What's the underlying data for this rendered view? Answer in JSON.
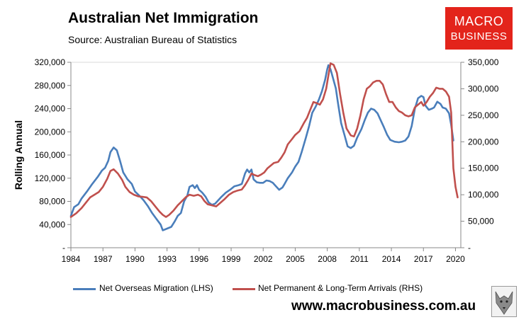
{
  "header": {
    "title": "Australian Net Immigration",
    "source": "Source: Australian Bureau of Statistics"
  },
  "logo": {
    "line1": "MACRO",
    "line2": "BUSINESS",
    "color": "#e3241b"
  },
  "footer": {
    "url": "www.macrobusiness.com.au"
  },
  "chart_data": {
    "type": "line",
    "ylabel": "Rolling Annual",
    "xlim": [
      1984,
      2020.5
    ],
    "ylim_left": [
      0,
      320000
    ],
    "ylim_right": [
      0,
      350000
    ],
    "x_ticks": [
      "1984",
      "1987",
      "1990",
      "1993",
      "1996",
      "1999",
      "2002",
      "2005",
      "2008",
      "2011",
      "2014",
      "2017",
      "2020"
    ],
    "y_ticks_left": [
      "-",
      "40,000",
      "80,000",
      "120,000",
      "160,000",
      "200,000",
      "240,000",
      "280,000",
      "320,000"
    ],
    "y_ticks_right": [
      "-",
      "50,000",
      "100,000",
      "150,000",
      "200,000",
      "250,000",
      "300,000",
      "350,000"
    ],
    "grid": false,
    "legend_position": "bottom",
    "series": [
      {
        "name": "Net Overseas Migration (LHS)",
        "axis": "left",
        "color": "#4a7ebb",
        "points": [
          [
            1984.0,
            55000
          ],
          [
            1984.3,
            70000
          ],
          [
            1984.7,
            75000
          ],
          [
            1985.0,
            85000
          ],
          [
            1985.5,
            97000
          ],
          [
            1986.0,
            110000
          ],
          [
            1986.5,
            122000
          ],
          [
            1986.9,
            133000
          ],
          [
            1987.2,
            138000
          ],
          [
            1987.5,
            150000
          ],
          [
            1987.7,
            165000
          ],
          [
            1988.0,
            173000
          ],
          [
            1988.3,
            168000
          ],
          [
            1988.6,
            150000
          ],
          [
            1988.9,
            130000
          ],
          [
            1989.3,
            118000
          ],
          [
            1989.7,
            110000
          ],
          [
            1990.0,
            97000
          ],
          [
            1990.4,
            90000
          ],
          [
            1990.8,
            82000
          ],
          [
            1991.2,
            72000
          ],
          [
            1991.6,
            60000
          ],
          [
            1992.0,
            50000
          ],
          [
            1992.4,
            40000
          ],
          [
            1992.6,
            30000
          ],
          [
            1993.0,
            33000
          ],
          [
            1993.4,
            36000
          ],
          [
            1993.7,
            45000
          ],
          [
            1994.0,
            55000
          ],
          [
            1994.3,
            60000
          ],
          [
            1994.6,
            80000
          ],
          [
            1994.9,
            90000
          ],
          [
            1995.1,
            105000
          ],
          [
            1995.4,
            108000
          ],
          [
            1995.6,
            103000
          ],
          [
            1995.8,
            108000
          ],
          [
            1996.0,
            100000
          ],
          [
            1996.3,
            95000
          ],
          [
            1996.6,
            88000
          ],
          [
            1996.9,
            78000
          ],
          [
            1997.2,
            74000
          ],
          [
            1997.5,
            76000
          ],
          [
            1997.8,
            82000
          ],
          [
            1998.1,
            88000
          ],
          [
            1998.5,
            95000
          ],
          [
            1998.9,
            100000
          ],
          [
            1999.3,
            106000
          ],
          [
            1999.7,
            108000
          ],
          [
            2000.0,
            110000
          ],
          [
            2000.3,
            128000
          ],
          [
            2000.5,
            135000
          ],
          [
            2000.7,
            130000
          ],
          [
            2000.9,
            135000
          ],
          [
            2001.1,
            118000
          ],
          [
            2001.4,
            113000
          ],
          [
            2001.7,
            112000
          ],
          [
            2002.0,
            112000
          ],
          [
            2002.3,
            116000
          ],
          [
            2002.6,
            115000
          ],
          [
            2002.9,
            112000
          ],
          [
            2003.2,
            106000
          ],
          [
            2003.5,
            100000
          ],
          [
            2003.8,
            104000
          ],
          [
            2004.0,
            110000
          ],
          [
            2004.3,
            120000
          ],
          [
            2004.7,
            130000
          ],
          [
            2005.0,
            140000
          ],
          [
            2005.3,
            148000
          ],
          [
            2005.6,
            165000
          ],
          [
            2006.0,
            190000
          ],
          [
            2006.3,
            210000
          ],
          [
            2006.6,
            233000
          ],
          [
            2006.9,
            243000
          ],
          [
            2007.2,
            255000
          ],
          [
            2007.5,
            270000
          ],
          [
            2007.8,
            290000
          ],
          [
            2008.0,
            308000
          ],
          [
            2008.1,
            315000
          ],
          [
            2008.3,
            308000
          ],
          [
            2008.5,
            295000
          ],
          [
            2008.8,
            275000
          ],
          [
            2009.0,
            250000
          ],
          [
            2009.3,
            215000
          ],
          [
            2009.6,
            195000
          ],
          [
            2009.9,
            175000
          ],
          [
            2010.2,
            172000
          ],
          [
            2010.5,
            176000
          ],
          [
            2010.8,
            190000
          ],
          [
            2011.2,
            205000
          ],
          [
            2011.5,
            220000
          ],
          [
            2011.8,
            233000
          ],
          [
            2012.1,
            240000
          ],
          [
            2012.4,
            238000
          ],
          [
            2012.7,
            232000
          ],
          [
            2013.0,
            220000
          ],
          [
            2013.3,
            208000
          ],
          [
            2013.6,
            195000
          ],
          [
            2013.9,
            186000
          ],
          [
            2014.3,
            183000
          ],
          [
            2014.7,
            182000
          ],
          [
            2015.0,
            183000
          ],
          [
            2015.3,
            185000
          ],
          [
            2015.6,
            192000
          ],
          [
            2015.9,
            210000
          ],
          [
            2016.2,
            240000
          ],
          [
            2016.5,
            258000
          ],
          [
            2016.8,
            262000
          ],
          [
            2017.0,
            260000
          ],
          [
            2017.2,
            245000
          ],
          [
            2017.5,
            238000
          ],
          [
            2017.8,
            240000
          ],
          [
            2018.0,
            242000
          ],
          [
            2018.3,
            252000
          ],
          [
            2018.6,
            248000
          ],
          [
            2018.8,
            242000
          ],
          [
            2019.1,
            240000
          ],
          [
            2019.4,
            232000
          ],
          [
            2019.6,
            212000
          ],
          [
            2019.8,
            185000
          ]
        ]
      },
      {
        "name": "Net Permanent & Long-Term Arrivals (RHS)",
        "axis": "right",
        "color": "#c0504d",
        "points": [
          [
            1984.0,
            58000
          ],
          [
            1984.5,
            65000
          ],
          [
            1985.0,
            75000
          ],
          [
            1985.4,
            85000
          ],
          [
            1985.8,
            95000
          ],
          [
            1986.2,
            100000
          ],
          [
            1986.6,
            105000
          ],
          [
            1987.0,
            115000
          ],
          [
            1987.4,
            130000
          ],
          [
            1987.7,
            145000
          ],
          [
            1988.0,
            148000
          ],
          [
            1988.4,
            140000
          ],
          [
            1988.8,
            128000
          ],
          [
            1989.1,
            115000
          ],
          [
            1989.5,
            105000
          ],
          [
            1989.9,
            100000
          ],
          [
            1990.3,
            97000
          ],
          [
            1990.7,
            96000
          ],
          [
            1991.1,
            95000
          ],
          [
            1991.5,
            88000
          ],
          [
            1991.9,
            78000
          ],
          [
            1992.3,
            68000
          ],
          [
            1992.6,
            62000
          ],
          [
            1992.9,
            58000
          ],
          [
            1993.2,
            62000
          ],
          [
            1993.6,
            70000
          ],
          [
            1994.0,
            80000
          ],
          [
            1994.4,
            88000
          ],
          [
            1994.8,
            96000
          ],
          [
            1995.1,
            100000
          ],
          [
            1995.5,
            98000
          ],
          [
            1995.9,
            100000
          ],
          [
            1996.2,
            97000
          ],
          [
            1996.5,
            88000
          ],
          [
            1996.8,
            82000
          ],
          [
            1997.2,
            80000
          ],
          [
            1997.6,
            78000
          ],
          [
            1998.0,
            85000
          ],
          [
            1998.4,
            92000
          ],
          [
            1998.8,
            100000
          ],
          [
            1999.2,
            105000
          ],
          [
            1999.6,
            108000
          ],
          [
            2000.0,
            110000
          ],
          [
            2000.3,
            118000
          ],
          [
            2000.6,
            128000
          ],
          [
            2000.9,
            140000
          ],
          [
            2001.2,
            137000
          ],
          [
            2001.5,
            135000
          ],
          [
            2001.8,
            138000
          ],
          [
            2002.1,
            142000
          ],
          [
            2002.4,
            150000
          ],
          [
            2002.7,
            155000
          ],
          [
            2003.0,
            160000
          ],
          [
            2003.4,
            162000
          ],
          [
            2003.7,
            170000
          ],
          [
            2004.0,
            180000
          ],
          [
            2004.3,
            195000
          ],
          [
            2004.7,
            205000
          ],
          [
            2005.0,
            213000
          ],
          [
            2005.4,
            220000
          ],
          [
            2005.8,
            235000
          ],
          [
            2006.1,
            245000
          ],
          [
            2006.4,
            260000
          ],
          [
            2006.7,
            275000
          ],
          [
            2007.0,
            273000
          ],
          [
            2007.3,
            270000
          ],
          [
            2007.6,
            280000
          ],
          [
            2007.9,
            300000
          ],
          [
            2008.1,
            325000
          ],
          [
            2008.3,
            348000
          ],
          [
            2008.6,
            345000
          ],
          [
            2008.9,
            330000
          ],
          [
            2009.2,
            290000
          ],
          [
            2009.5,
            255000
          ],
          [
            2009.8,
            225000
          ],
          [
            2010.2,
            212000
          ],
          [
            2010.5,
            210000
          ],
          [
            2010.8,
            225000
          ],
          [
            2011.1,
            250000
          ],
          [
            2011.4,
            280000
          ],
          [
            2011.7,
            300000
          ],
          [
            2012.0,
            305000
          ],
          [
            2012.3,
            312000
          ],
          [
            2012.6,
            315000
          ],
          [
            2012.9,
            315000
          ],
          [
            2013.2,
            308000
          ],
          [
            2013.5,
            290000
          ],
          [
            2013.8,
            275000
          ],
          [
            2014.1,
            275000
          ],
          [
            2014.4,
            265000
          ],
          [
            2014.7,
            258000
          ],
          [
            2015.0,
            255000
          ],
          [
            2015.3,
            250000
          ],
          [
            2015.6,
            248000
          ],
          [
            2015.9,
            250000
          ],
          [
            2016.2,
            265000
          ],
          [
            2016.5,
            270000
          ],
          [
            2016.8,
            275000
          ],
          [
            2017.0,
            268000
          ],
          [
            2017.3,
            275000
          ],
          [
            2017.6,
            285000
          ],
          [
            2017.9,
            292000
          ],
          [
            2018.2,
            302000
          ],
          [
            2018.5,
            300000
          ],
          [
            2018.8,
            300000
          ],
          [
            2019.1,
            295000
          ],
          [
            2019.4,
            285000
          ],
          [
            2019.6,
            255000
          ],
          [
            2019.8,
            150000
          ],
          [
            2020.0,
            115000
          ],
          [
            2020.2,
            95000
          ]
        ]
      }
    ]
  }
}
